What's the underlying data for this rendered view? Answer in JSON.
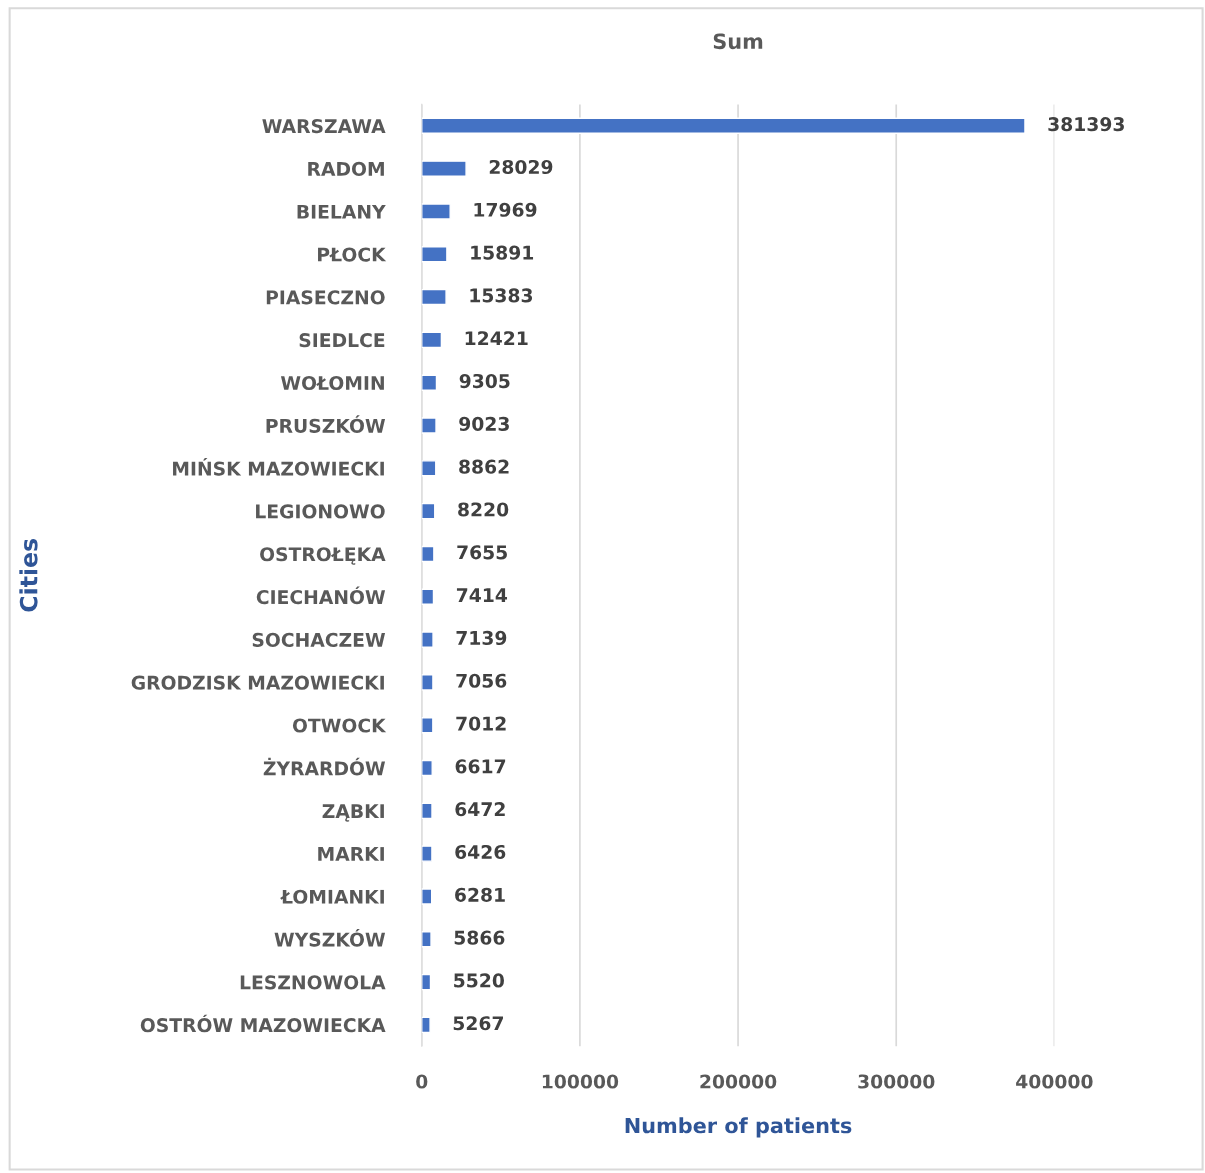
{
  "chart_data": {
    "type": "bar",
    "orientation": "horizontal",
    "title": "Sum",
    "xlabel": "Number of patients",
    "ylabel": "Cities",
    "categories": [
      "WARSZAWA",
      "RADOM",
      "BIELANY",
      "PŁOCK",
      "PIASECZNO",
      "SIEDLCE",
      "WOŁOMIN",
      "PRUSZKÓW",
      "MIŃSK MAZOWIECKI",
      "LEGIONOWO",
      "OSTROŁĘKA",
      "CIECHANÓW",
      "SOCHACZEW",
      "GRODZISK MAZOWIECKI",
      "OTWOCK",
      "ŻYRARDÓW",
      "ZĄBKI",
      "MARKI",
      "ŁOMIANKI",
      "WYSZKÓW",
      "LESZNOWOLA",
      "OSTRÓW MAZOWIECKA"
    ],
    "values": [
      381393,
      28029,
      17969,
      15891,
      15383,
      12421,
      9305,
      9023,
      8862,
      8220,
      7655,
      7414,
      7139,
      7056,
      7012,
      6617,
      6472,
      6426,
      6281,
      5866,
      5520,
      5267
    ],
    "color": "#4472c4",
    "xlim": [
      0,
      400000
    ],
    "xticks": [
      0,
      100000,
      200000,
      300000,
      400000
    ],
    "grid": "x",
    "data_labels": true
  }
}
